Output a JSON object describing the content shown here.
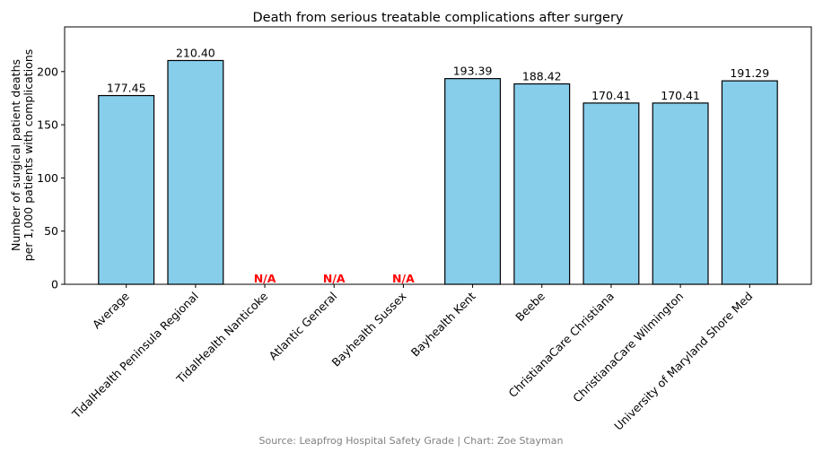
{
  "chart_data": {
    "type": "bar",
    "title": "Death from serious treatable complications after surgery",
    "xlabel": "",
    "ylabel": [
      "Number of surgical patient deaths",
      "per 1,000 patients with complications"
    ],
    "ylim": [
      0,
      242
    ],
    "yticks": [
      0,
      50,
      100,
      150,
      200
    ],
    "grid": false,
    "categories": [
      "Average",
      "TidalHealth Peninsula Regional",
      "TidalHealth Nanticoke",
      "Atlantic General",
      "Bayhealth Sussex",
      "Bayhealth Kent",
      "Beebe",
      "ChristianaCare Christiana",
      "ChristianaCare Wilmington",
      "University of Maryland Shore Med"
    ],
    "values": [
      177.45,
      210.4,
      null,
      null,
      null,
      193.39,
      188.42,
      170.41,
      170.41,
      191.29
    ],
    "data_labels": [
      "177.45",
      "210.40",
      "N/A",
      "N/A",
      "N/A",
      "193.39",
      "188.42",
      "170.41",
      "170.41",
      "191.29"
    ],
    "bar_color": "#87CEEB",
    "edge_color": "#000000",
    "na_color": "#FF0000"
  },
  "footer": "Source: Leapfrog Hospital Safety Grade | Chart: Zoe Stayman"
}
